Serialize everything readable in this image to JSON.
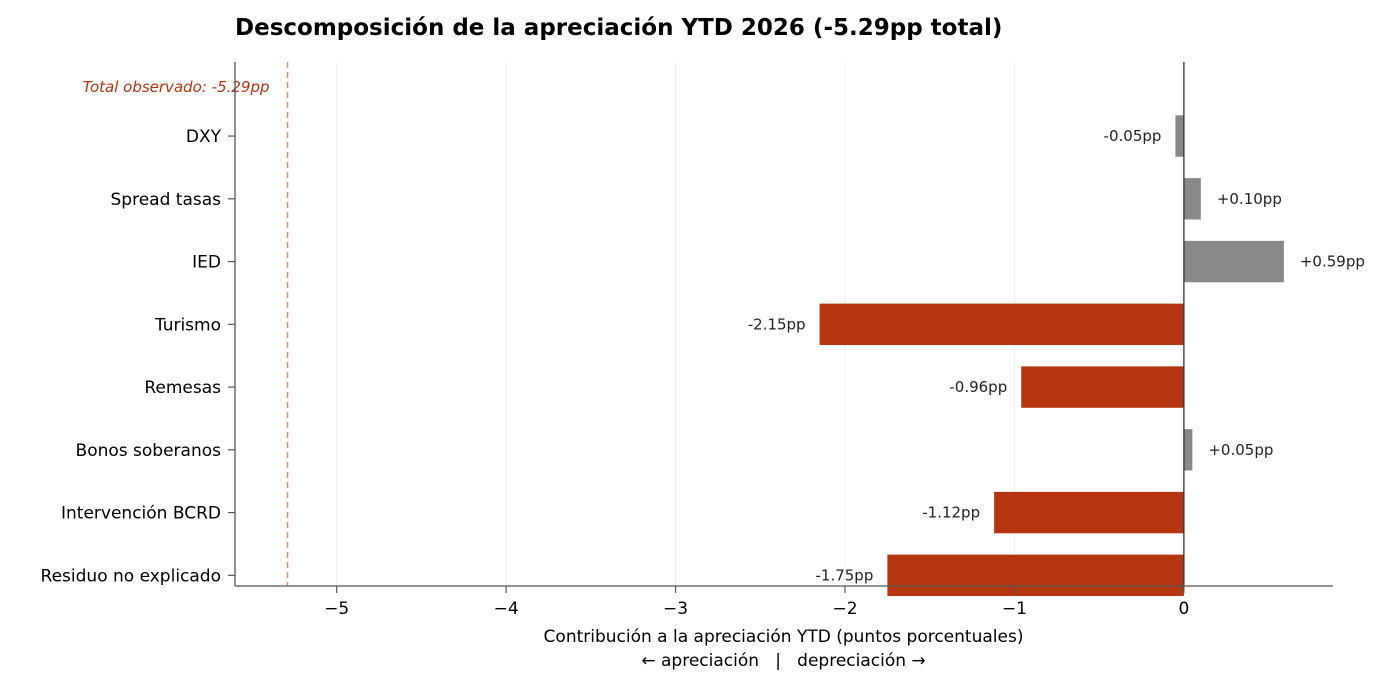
{
  "chart_data": {
    "type": "bar",
    "orientation": "horizontal",
    "title": "Descomposición de la apreciación YTD 2026 (-5.29pp total)",
    "xlabel_line1": "Contribución a la apreciación YTD (puntos porcentuales)",
    "xlabel_line2": "← apreciación   |   depreciación →",
    "ylabel": "",
    "xlim": [
      -5.6,
      0.88
    ],
    "xticks": [
      -5,
      -4,
      -3,
      -2,
      -1,
      0
    ],
    "xtick_labels": [
      "−5",
      "−4",
      "−3",
      "−2",
      "−1",
      "0"
    ],
    "grid": "vertical",
    "categories": [
      "DXY",
      "Spread tasas",
      "IED",
      "Turismo",
      "Remesas",
      "Bonos soberanos",
      "Intervención BCRD",
      "Residuo no explicado"
    ],
    "values": [
      -0.05,
      0.1,
      0.59,
      -2.15,
      -0.96,
      0.05,
      -1.12,
      -1.75
    ],
    "value_labels": [
      "-0.05pp",
      "+0.10pp",
      "+0.59pp",
      "-2.15pp",
      "-0.96pp",
      "+0.05pp",
      "-1.12pp",
      "-1.75pp"
    ],
    "reference_line": {
      "value": -5.29,
      "label": "Total observado: -5.29pp",
      "style": "dashed"
    },
    "colors": {
      "major_bar": "#b5350f",
      "minor_bar": "#888888",
      "reference_line": "#e8887a",
      "reference_text": "#b5350f",
      "zero_line": "#333333",
      "grid": "#eeeeee",
      "axis": "#555555"
    },
    "highlight_threshold": 0.5
  }
}
